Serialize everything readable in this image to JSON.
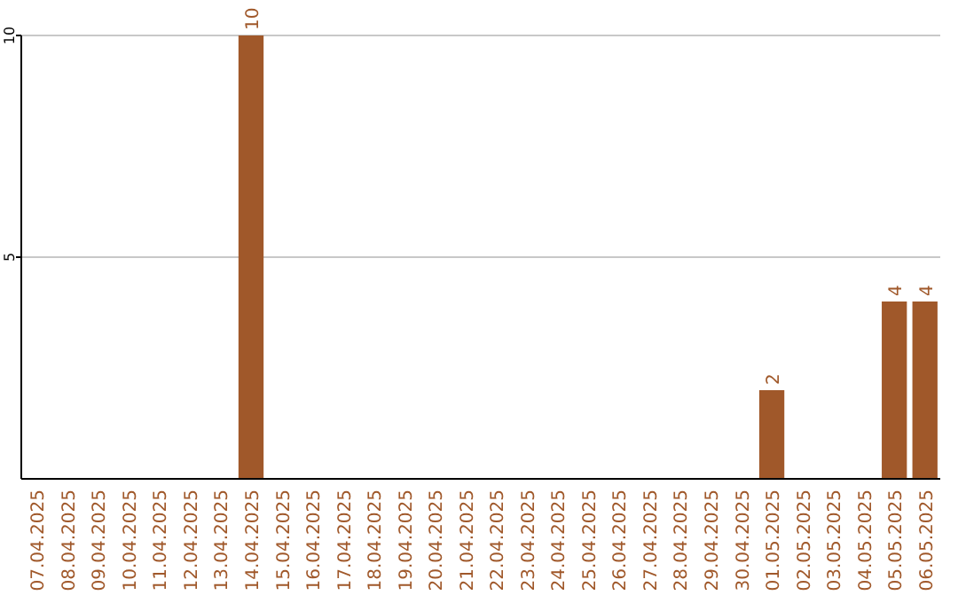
{
  "chart_data": {
    "type": "bar",
    "categories": [
      "07.04.2025",
      "08.04.2025",
      "09.04.2025",
      "10.04.2025",
      "11.04.2025",
      "12.04.2025",
      "13.04.2025",
      "14.04.2025",
      "15.04.2025",
      "16.04.2025",
      "17.04.2025",
      "18.04.2025",
      "19.04.2025",
      "20.04.2025",
      "21.04.2025",
      "22.04.2025",
      "23.04.2025",
      "24.04.2025",
      "25.04.2025",
      "26.04.2025",
      "27.04.2025",
      "28.04.2025",
      "29.04.2025",
      "30.04.2025",
      "01.05.2025",
      "02.05.2025",
      "03.05.2025",
      "04.05.2025",
      "05.05.2025",
      "06.05.2025"
    ],
    "values": [
      0,
      0,
      0,
      0,
      0,
      0,
      0,
      10,
      0,
      0,
      0,
      0,
      0,
      0,
      0,
      0,
      0,
      0,
      0,
      0,
      0,
      0,
      0,
      0,
      2,
      0,
      0,
      0,
      4,
      4
    ],
    "value_labels": [
      null,
      null,
      null,
      null,
      null,
      null,
      null,
      "10",
      null,
      null,
      null,
      null,
      null,
      null,
      null,
      null,
      null,
      null,
      null,
      null,
      null,
      null,
      null,
      null,
      "2",
      null,
      null,
      null,
      "4",
      "4"
    ],
    "color": "#a0582a",
    "ylim": [
      0,
      10
    ],
    "yticks": [
      5,
      10
    ],
    "grid": "y"
  }
}
